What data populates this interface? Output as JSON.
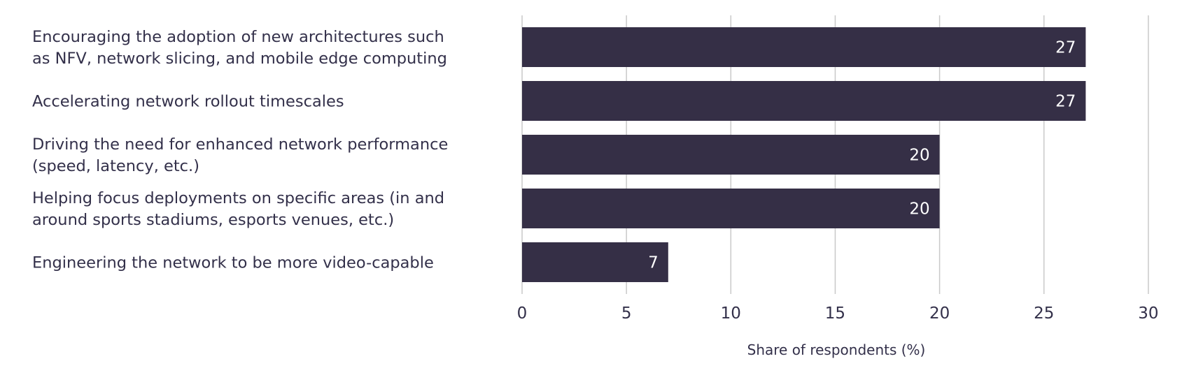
{
  "colors": {
    "bar": "#352f46",
    "grid": "#c9c9c9",
    "text": "#33304a",
    "bar_label": "#ffffff"
  },
  "chart_data": {
    "type": "bar",
    "orientation": "horizontal",
    "categories": [
      [
        "Encouraging the adoption of new architectures such",
        "as NFV, network slicing, and mobile edge computing"
      ],
      [
        "Accelerating network rollout timescales"
      ],
      [
        "Driving the need for enhanced network performance",
        "(speed, latency, etc.)"
      ],
      [
        "Helping focus deployments on specific areas (in and",
        "around sports stadiums, esports venues, etc.)"
      ],
      [
        "Engineering the network to be more video-capable"
      ]
    ],
    "values": [
      27,
      27,
      20,
      20,
      7
    ],
    "data_labels": [
      "27",
      "27",
      "20",
      "20",
      "7"
    ],
    "xlabel": "Share of respondents (%)",
    "ylabel": "",
    "title": "",
    "xlim": [
      0,
      30
    ],
    "xticks": [
      0,
      5,
      10,
      15,
      20,
      25,
      30
    ],
    "grid": "vertical",
    "legend": "none"
  }
}
